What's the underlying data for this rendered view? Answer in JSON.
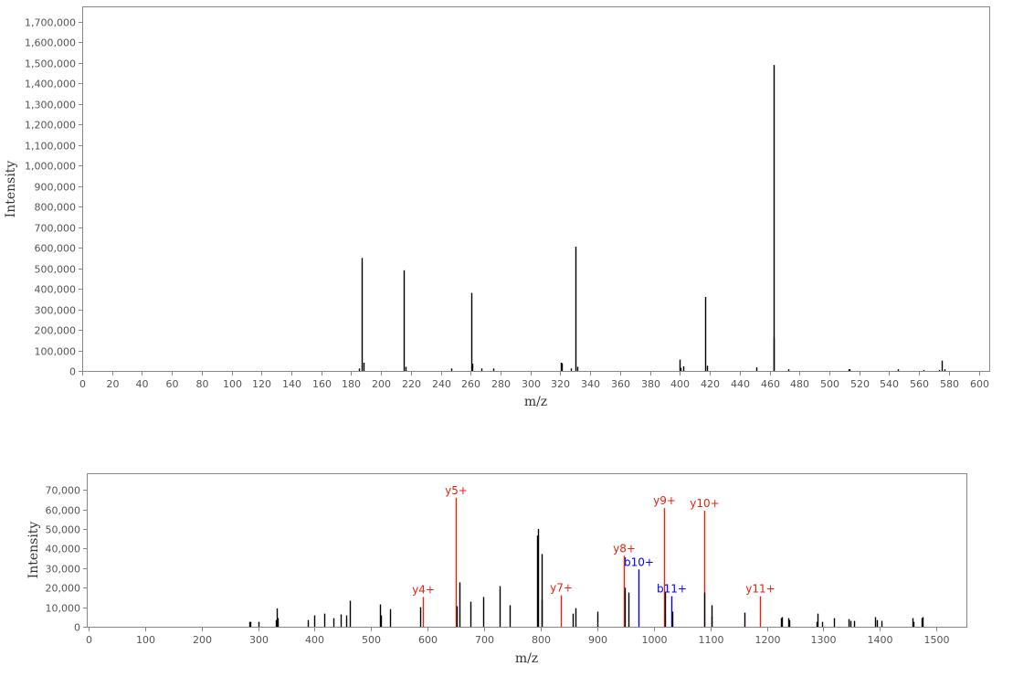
{
  "chart_data": [
    {
      "type": "bar",
      "xlabel": "m/z",
      "ylabel": "Intensity",
      "xlim": [
        0,
        607
      ],
      "ylim": [
        0,
        1775000
      ],
      "x_ticks": [
        0,
        20,
        40,
        60,
        80,
        100,
        120,
        140,
        160,
        180,
        200,
        220,
        240,
        260,
        280,
        300,
        320,
        340,
        360,
        380,
        400,
        420,
        440,
        460,
        480,
        500,
        520,
        540,
        560,
        580,
        600
      ],
      "y_ticks": [
        0,
        100000,
        200000,
        300000,
        400000,
        500000,
        600000,
        700000,
        800000,
        900000,
        1000000,
        1100000,
        1200000,
        1300000,
        1400000,
        1500000,
        1600000,
        1700000
      ],
      "y_tick_labels": [
        "0",
        "100,000",
        "200,000",
        "300,000",
        "400,000",
        "500,000",
        "600,000",
        "700,000",
        "800,000",
        "900,000",
        "1,000,000",
        "1,100,000",
        "1,200,000",
        "1,300,000",
        "1,400,000",
        "1,500,000",
        "1,600,000",
        "1,700,000"
      ],
      "grid": false,
      "peaks": [
        {
          "mz": 185,
          "i": 12000
        },
        {
          "mz": 187.3,
          "i": 550000
        },
        {
          "mz": 188,
          "i": 40000
        },
        {
          "mz": 215.3,
          "i": 490000
        },
        {
          "mz": 216.5,
          "i": 20000
        },
        {
          "mz": 247,
          "i": 12000
        },
        {
          "mz": 260.3,
          "i": 380000
        },
        {
          "mz": 261.3,
          "i": 35000
        },
        {
          "mz": 267,
          "i": 12000
        },
        {
          "mz": 275,
          "i": 12000
        },
        {
          "mz": 320.5,
          "i": 40000
        },
        {
          "mz": 321.2,
          "i": 37000
        },
        {
          "mz": 327,
          "i": 12000
        },
        {
          "mz": 330,
          "i": 605000
        },
        {
          "mz": 331.2,
          "i": 20000
        },
        {
          "mz": 399.5,
          "i": 55000
        },
        {
          "mz": 400.2,
          "i": 15000
        },
        {
          "mz": 402.5,
          "i": 22000
        },
        {
          "mz": 417,
          "i": 360000
        },
        {
          "mz": 418.3,
          "i": 25000
        },
        {
          "mz": 451,
          "i": 17000
        },
        {
          "mz": 462.5,
          "i": 1490000
        },
        {
          "mz": 463,
          "i": 160000
        },
        {
          "mz": 472.5,
          "i": 8000
        },
        {
          "mz": 513,
          "i": 8000
        },
        {
          "mz": 513.4,
          "i": 8000
        },
        {
          "mz": 546,
          "i": 8000
        },
        {
          "mz": 563,
          "i": 5000
        },
        {
          "mz": 573.5,
          "i": 5000
        },
        {
          "mz": 575.2,
          "i": 50000
        },
        {
          "mz": 577,
          "i": 8000
        }
      ]
    },
    {
      "type": "bar",
      "xlabel": "m/z",
      "ylabel": "Intensity",
      "xlim": [
        -3,
        1553
      ],
      "ylim": [
        0,
        78500
      ],
      "x_ticks": [
        0,
        100,
        200,
        300,
        400,
        500,
        600,
        700,
        800,
        900,
        1000,
        1100,
        1200,
        1300,
        1400,
        1500
      ],
      "y_ticks": [
        0,
        10000,
        20000,
        30000,
        40000,
        50000,
        60000,
        70000
      ],
      "y_tick_labels": [
        "0",
        "10,000",
        "20,000",
        "30,000",
        "40,000",
        "50,000",
        "60,000",
        "70,000"
      ],
      "grid": false,
      "colors": {
        "unannotated": "#000000",
        "y_ion": "#e8230f",
        "b_ion": "#0000ff"
      },
      "peaks": [
        {
          "mz": 284,
          "i": 2500
        },
        {
          "mz": 287,
          "i": 2500
        },
        {
          "mz": 300,
          "i": 2500
        },
        {
          "mz": 331,
          "i": 3400
        },
        {
          "mz": 333,
          "i": 9400
        },
        {
          "mz": 335,
          "i": 4400
        },
        {
          "mz": 388,
          "i": 3400
        },
        {
          "mz": 400,
          "i": 5800
        },
        {
          "mz": 417,
          "i": 6700
        },
        {
          "mz": 434,
          "i": 4400
        },
        {
          "mz": 446,
          "i": 6300
        },
        {
          "mz": 456,
          "i": 5800
        },
        {
          "mz": 463,
          "i": 13300
        },
        {
          "mz": 515,
          "i": 11400
        },
        {
          "mz": 518,
          "i": 5800
        },
        {
          "mz": 533,
          "i": 9000
        },
        {
          "mz": 586,
          "i": 10000
        },
        {
          "mz": 592,
          "i": 15200,
          "label": "y4+",
          "ion": "y"
        },
        {
          "mz": 649,
          "i": 66000,
          "label": "y5+",
          "ion": "y"
        },
        {
          "mz": 651,
          "i": 10500
        },
        {
          "mz": 657,
          "i": 22700
        },
        {
          "mz": 675,
          "i": 12800
        },
        {
          "mz": 699,
          "i": 15200
        },
        {
          "mz": 727,
          "i": 20800
        },
        {
          "mz": 745,
          "i": 11000
        },
        {
          "mz": 793,
          "i": 46600
        },
        {
          "mz": 794.5,
          "i": 50000
        },
        {
          "mz": 801,
          "i": 13800
        },
        {
          "mz": 802,
          "i": 37200
        },
        {
          "mz": 835,
          "i": 16100,
          "label": "y7+",
          "ion": "y"
        },
        {
          "mz": 856,
          "i": 6700
        },
        {
          "mz": 862,
          "i": 9500
        },
        {
          "mz": 900,
          "i": 7700
        },
        {
          "mz": 947,
          "i": 36300,
          "label": "y8+",
          "ion": "y"
        },
        {
          "mz": 948.5,
          "i": 19900
        },
        {
          "mz": 955,
          "i": 17500
        },
        {
          "mz": 973,
          "i": 29300,
          "label": "b10+",
          "ion": "b"
        },
        {
          "mz": 1018,
          "i": 60700,
          "label": "y9+",
          "ion": "y"
        },
        {
          "mz": 1019,
          "i": 17500
        },
        {
          "mz": 1031,
          "i": 15600,
          "label": "b11+",
          "ion": "b"
        },
        {
          "mz": 1032,
          "i": 7700
        },
        {
          "mz": 1089,
          "i": 59300,
          "label": "y10+",
          "ion": "y"
        },
        {
          "mz": 1090,
          "i": 17500
        },
        {
          "mz": 1102,
          "i": 11000
        },
        {
          "mz": 1103,
          "i": 5300
        },
        {
          "mz": 1160,
          "i": 7200
        },
        {
          "mz": 1188,
          "i": 15600,
          "label": "y11+",
          "ion": "y"
        },
        {
          "mz": 1225,
          "i": 4400
        },
        {
          "mz": 1227,
          "i": 4900
        },
        {
          "mz": 1238,
          "i": 4400
        },
        {
          "mz": 1240,
          "i": 3400
        },
        {
          "mz": 1288,
          "i": 2500
        },
        {
          "mz": 1290,
          "i": 6700
        },
        {
          "mz": 1297,
          "i": 2500
        },
        {
          "mz": 1318,
          "i": 4400
        },
        {
          "mz": 1344,
          "i": 3900
        },
        {
          "mz": 1348,
          "i": 3000
        },
        {
          "mz": 1355,
          "i": 3000
        },
        {
          "mz": 1392,
          "i": 4900
        },
        {
          "mz": 1394,
          "i": 3400
        },
        {
          "mz": 1403,
          "i": 3000
        },
        {
          "mz": 1457,
          "i": 4400
        },
        {
          "mz": 1459,
          "i": 2500
        },
        {
          "mz": 1474,
          "i": 4400
        },
        {
          "mz": 1476,
          "i": 4900
        }
      ]
    }
  ]
}
